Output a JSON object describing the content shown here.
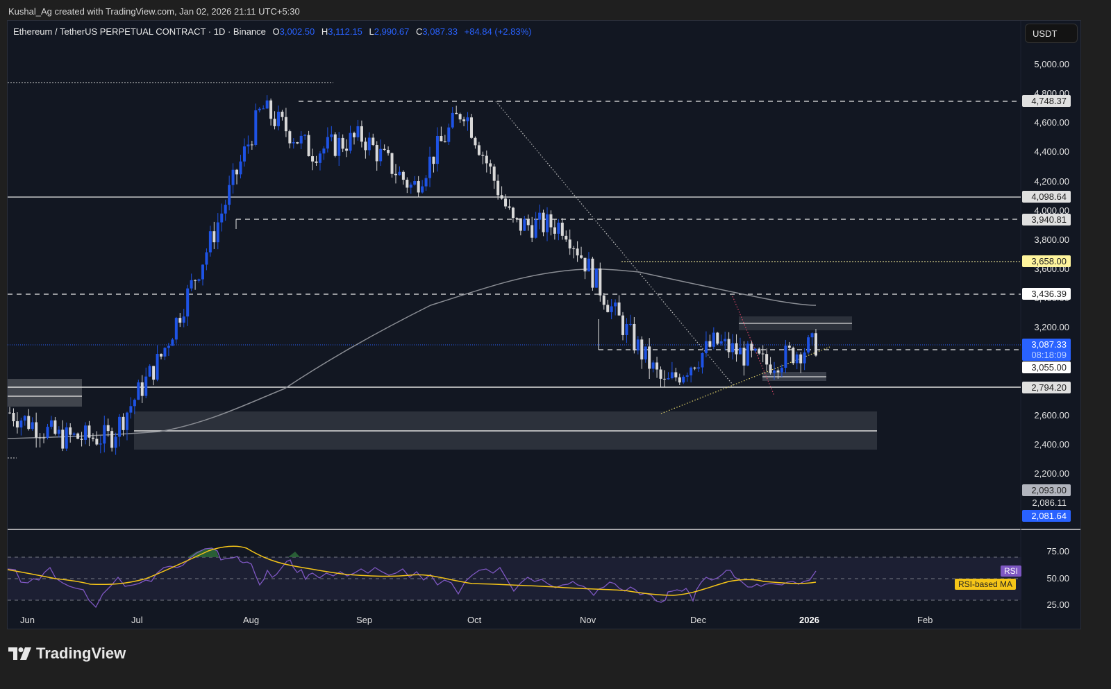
{
  "credit": "Kushal_Ag created with TradingView.com, Jan 02, 2026 21:11 UTC+5:30",
  "legend": {
    "symbol": "Ethereum / TetherUS PERPETUAL CONTRACT · 1D · Binance",
    "o_label": "O",
    "o": "3,002.50",
    "h_label": "H",
    "h": "3,112.15",
    "l_label": "L",
    "l": "2,990.67",
    "c_label": "C",
    "c": "3,087.33",
    "change": "+84.84 (+2.83%)"
  },
  "currency": "USDT",
  "price_axis": {
    "ticks": [
      "5,000.00",
      "4,800.00",
      "4,600.00",
      "4,400.00",
      "4,200.00",
      "4,000.00",
      "3,800.00",
      "3,600.00",
      "3,400.00",
      "3,200.00",
      "2,600.00",
      "2,400.00",
      "2,200.00"
    ],
    "labels": {
      "l4748": "4,748.37",
      "l4098": "4,098.64",
      "l3940": "3,940.81",
      "l3658": "3,658.00",
      "l3436": "3,436.39",
      "last_price": "3,087.33",
      "countdown": "08:18:09",
      "l3055": "3,055.00",
      "l2794": "2,794.20",
      "l2093": "2,093.00",
      "l2086": "2,086.11",
      "l2081": "2,081.64"
    }
  },
  "rsi_axis": {
    "ticks": [
      "75.00",
      "50.00",
      "25.00"
    ],
    "rsi_tag": "RSI",
    "ma_tag": "RSI-based MA"
  },
  "time_axis": [
    "Jun",
    "Jul",
    "Aug",
    "Sep",
    "Oct",
    "Nov",
    "Dec",
    "2026",
    "Feb"
  ],
  "brand": "TradingView",
  "colors": {
    "up": "#1e53e5",
    "down": "#d9d9d9",
    "rsi": "#7e57c2",
    "rsi_ma": "#f5c518",
    "last_price": "#2962ff",
    "highlight": "#fff59d"
  },
  "chart_data": {
    "type": "candlestick",
    "title": "Ethereum / TetherUS PERPETUAL CONTRACT · 1D · Binance",
    "ylabel": "USDT",
    "ylim": [
      2000,
      5100
    ],
    "x_ticks": [
      "Jun",
      "Jul",
      "Aug",
      "Sep",
      "Oct",
      "Nov",
      "Dec",
      "2026",
      "Feb"
    ],
    "last_ohlc": {
      "open": 3002.5,
      "high": 3112.15,
      "low": 2990.67,
      "close": 3087.33,
      "change": 84.84,
      "change_pct": 2.83
    },
    "horizontal_levels": [
      4748.37,
      4098.64,
      3940.81,
      3658.0,
      3436.39,
      3055.0,
      2794.2,
      2500.0
    ],
    "approx_closes": [
      {
        "month": "Jun-start",
        "price": 2620
      },
      {
        "month": "Jun-mid",
        "price": 2450
      },
      {
        "month": "Jun-end",
        "price": 2450
      },
      {
        "month": "Jul-mid",
        "price": 3000
      },
      {
        "month": "Jul-end",
        "price": 3800
      },
      {
        "month": "Aug-mid",
        "price": 4700
      },
      {
        "month": "Aug-end",
        "price": 4400
      },
      {
        "month": "Sep-mid",
        "price": 4500
      },
      {
        "month": "Sep-end",
        "price": 4150
      },
      {
        "month": "Oct-start",
        "price": 4700
      },
      {
        "month": "Oct-mid",
        "price": 3900
      },
      {
        "month": "Oct-end",
        "price": 3900
      },
      {
        "month": "Nov-mid",
        "price": 3300
      },
      {
        "month": "Nov-end",
        "price": 2800
      },
      {
        "month": "Dec-mid",
        "price": 3100
      },
      {
        "month": "Dec-end",
        "price": 2950
      },
      {
        "month": "Jan-02",
        "price": 3087
      }
    ],
    "indicators": {
      "moving_average": "gray MA rising from ~2450 (Jul) to ~3650 (Nov), declining to ~3400 (Dec)",
      "rsi": {
        "levels": [
          75,
          50,
          25
        ],
        "last": 57,
        "ma_last": 47
      }
    }
  }
}
